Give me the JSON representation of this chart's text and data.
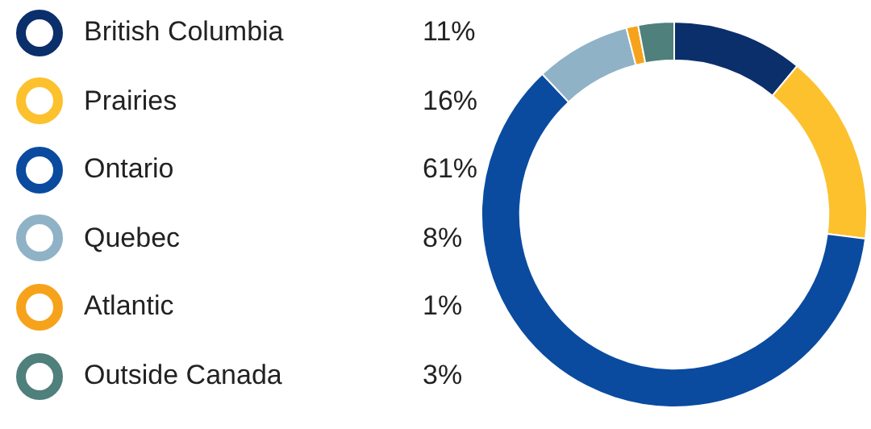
{
  "chart_data": {
    "type": "donut",
    "categories": [
      "British Columbia",
      "Prairies",
      "Ontario",
      "Quebec",
      "Atlantic",
      "Outside Canada"
    ],
    "values": [
      11,
      16,
      61,
      8,
      1,
      3
    ],
    "value_labels": [
      "11%",
      "16%",
      "61%",
      "8%",
      "1%",
      "3%"
    ],
    "colors": [
      "#0b2f6b",
      "#fcc12d",
      "#0a4ba0",
      "#8fb2c6",
      "#f6a31b",
      "#4f807b"
    ],
    "legend": "left"
  }
}
